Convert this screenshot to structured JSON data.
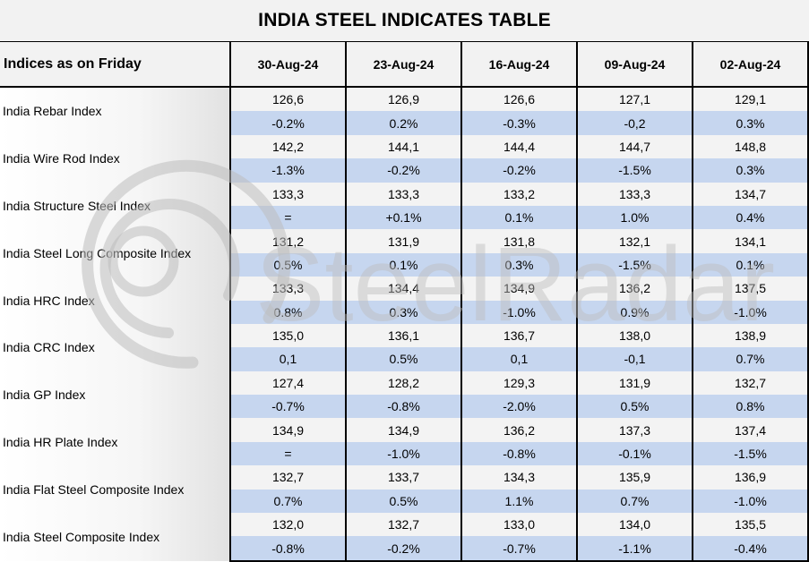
{
  "title": "INDIA STEEL INDICATES TABLE",
  "header": {
    "first_col": "Indices as on Friday",
    "dates": [
      "30-Aug-24",
      "23-Aug-24",
      "16-Aug-24",
      "09-Aug-24",
      "02-Aug-24"
    ]
  },
  "rows": [
    {
      "label": "India Rebar Index",
      "values": [
        "126,6",
        "126,9",
        "126,6",
        "127,1",
        "129,1"
      ],
      "changes": [
        "-0.2%",
        "0.2%",
        "-0.3%",
        "-0,2",
        "0.3%"
      ]
    },
    {
      "label": "India Wire Rod Index",
      "values": [
        "142,2",
        "144,1",
        "144,4",
        "144,7",
        "148,8"
      ],
      "changes": [
        "-1.3%",
        "-0.2%",
        "-0.2%",
        "-1.5%",
        "0.3%"
      ]
    },
    {
      "label": "India Structure Steel Index",
      "values": [
        "133,3",
        "133,3",
        "133,2",
        "133,3",
        "134,7"
      ],
      "changes": [
        "=",
        "+0.1%",
        "0.1%",
        "1.0%",
        "0.4%"
      ]
    },
    {
      "label": "India Steel Long Composite Index",
      "values": [
        "131,2",
        "131,9",
        "131,8",
        "132,1",
        "134,1"
      ],
      "changes": [
        "0.5%",
        "0.1%",
        "0.3%",
        "-1.5%",
        "0.1%"
      ]
    },
    {
      "label": "India HRC Index",
      "values": [
        "133,3",
        "134,4",
        "134,9",
        "136,2",
        "137,5"
      ],
      "changes": [
        "0.8%",
        "0.3%",
        "-1.0%",
        "0.9%",
        "-1.0%"
      ]
    },
    {
      "label": "India CRC Index",
      "values": [
        "135,0",
        "136,1",
        "136,7",
        "138,0",
        "138,9"
      ],
      "changes": [
        "0,1",
        "0.5%",
        "0,1",
        "-0,1",
        "0.7%"
      ]
    },
    {
      "label": "India GP Index",
      "values": [
        "127,4",
        "128,2",
        "129,3",
        "131,9",
        "132,7"
      ],
      "changes": [
        "-0.7%",
        "-0.8%",
        "-2.0%",
        "0.5%",
        "0.8%"
      ]
    },
    {
      "label": "India HR Plate Index",
      "values": [
        "134,9",
        "134,9",
        "136,2",
        "137,3",
        "137,4"
      ],
      "changes": [
        "=",
        "-1.0%",
        "-0.8%",
        "-0.1%",
        "-1.5%"
      ]
    },
    {
      "label": "India Flat Steel Composite Index",
      "values": [
        "132,7",
        "133,7",
        "134,3",
        "135,9",
        "136,9"
      ],
      "changes": [
        "0.7%",
        "0.5%",
        "1.1%",
        "0.7%",
        "-1.0%"
      ]
    },
    {
      "label": "India Steel Composite Index",
      "values": [
        "132,0",
        "132,7",
        "133,0",
        "134,0",
        "135,5"
      ],
      "changes": [
        "-0.8%",
        "-0.2%",
        "-0.7%",
        "-1.1%",
        "-0.4%"
      ]
    }
  ],
  "watermark": {
    "text": "SteelRadar",
    "logo_icon": "radar-rings-icon",
    "color": "#bdbdbd"
  },
  "colors": {
    "value_row": "#f3f3f3",
    "change_row": "#c6d6ef",
    "header": "#f2f2f2"
  }
}
